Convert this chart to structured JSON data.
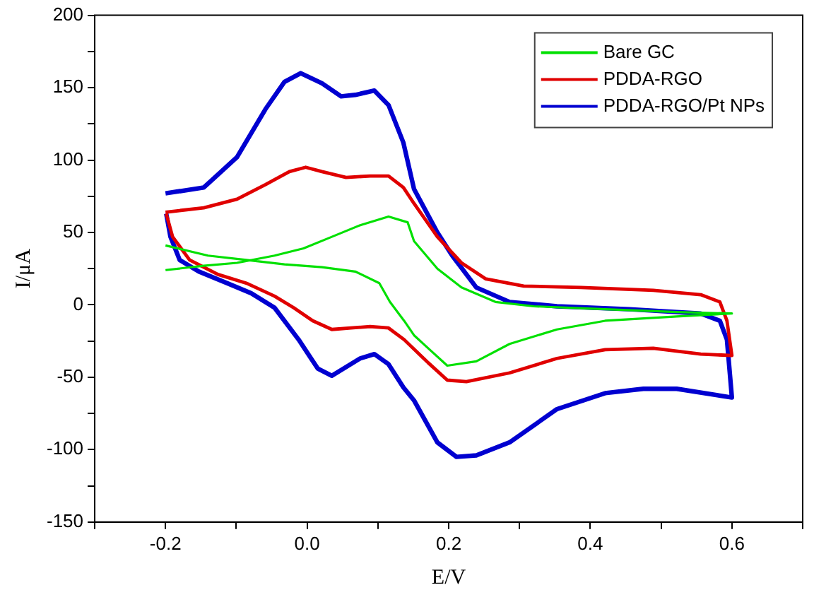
{
  "chart_data": {
    "type": "line",
    "xlabel": "E/V",
    "ylabel": "I/μA",
    "xlim": [
      -0.3,
      0.7
    ],
    "ylim": [
      -150,
      200
    ],
    "xticks": [
      {
        "value": -0.3,
        "label": null
      },
      -0.2,
      {
        "value": -0.1,
        "label": null
      },
      {
        "value": 0,
        "label": "0.0"
      },
      {
        "value": 0.1,
        "label": null
      },
      0.2,
      {
        "value": 0.3,
        "label": null
      },
      0.4,
      {
        "value": 0.5,
        "label": null
      },
      0.6,
      {
        "value": 0.7,
        "label": null
      }
    ],
    "yticks": [
      -150,
      {
        "value": -125,
        "label": null
      },
      -100,
      {
        "value": -75,
        "label": null
      },
      -50,
      {
        "value": -25,
        "label": null
      },
      0,
      {
        "value": 25,
        "label": null
      },
      50,
      {
        "value": 75,
        "label": null
      },
      100,
      {
        "value": 125,
        "label": null
      },
      150,
      {
        "value": 175,
        "label": null
      },
      200
    ],
    "legend": "top right",
    "grid": false,
    "marker": "none",
    "line_style": "solid",
    "series": [
      {
        "name": "Bare GC",
        "color": "#00e000",
        "x": [
          -0.2,
          -0.146,
          -0.099,
          -0.046,
          -0.005,
          0.035,
          0.075,
          0.115,
          0.142,
          0.151,
          0.184,
          0.218,
          0.266,
          0.32,
          0.421,
          0.522,
          0.6,
          0.522,
          0.421,
          0.353,
          0.286,
          0.239,
          0.198,
          0.171,
          0.151,
          0.137,
          0.117,
          0.102,
          0.068,
          0.021,
          -0.032,
          -0.086,
          -0.14,
          -0.2
        ],
        "values": [
          24,
          27,
          29,
          34,
          39,
          47,
          55,
          61,
          57,
          44,
          25,
          12,
          2,
          -1,
          -3,
          -5,
          -6,
          -8,
          -11,
          -17,
          -27,
          -39,
          -42,
          -30,
          -21,
          -11,
          2,
          15,
          23,
          26,
          28,
          31,
          34,
          41
        ]
      },
      {
        "name": "PDDA-RGO",
        "color": "#e00000",
        "x": [
          -0.2,
          -0.146,
          -0.099,
          -0.059,
          -0.025,
          -0.002,
          0.021,
          0.055,
          0.089,
          0.115,
          0.136,
          0.151,
          0.184,
          0.218,
          0.252,
          0.306,
          0.387,
          0.489,
          0.556,
          0.583,
          0.593,
          0.6,
          0.556,
          0.489,
          0.421,
          0.353,
          0.286,
          0.225,
          0.198,
          0.171,
          0.137,
          0.115,
          0.089,
          0.062,
          0.035,
          0.008,
          -0.019,
          -0.046,
          -0.086,
          -0.126,
          -0.166,
          -0.19,
          -0.199
        ],
        "values": [
          64,
          67,
          73,
          83,
          92,
          95,
          92,
          88,
          89,
          89,
          81,
          70,
          47,
          29,
          18,
          13,
          12,
          10,
          7,
          2,
          -11,
          -35,
          -34,
          -30,
          -31,
          -37,
          -47,
          -53,
          -52,
          -40,
          -24,
          -16,
          -15,
          -16,
          -17,
          -11,
          -2,
          6,
          15,
          21,
          31,
          47,
          63
        ]
      },
      {
        "name": "PDDA-RGO/Pt NPs",
        "color": "#0000d0",
        "x": [
          -0.2,
          -0.146,
          -0.099,
          -0.059,
          -0.032,
          -0.009,
          0.021,
          0.048,
          0.068,
          0.095,
          0.115,
          0.136,
          0.151,
          0.184,
          0.205,
          0.239,
          0.286,
          0.353,
          0.455,
          0.522,
          0.556,
          0.583,
          0.593,
          0.6,
          0.522,
          0.475,
          0.421,
          0.353,
          0.286,
          0.239,
          0.211,
          0.184,
          0.151,
          0.136,
          0.115,
          0.095,
          0.075,
          0.035,
          0.015,
          -0.012,
          -0.046,
          -0.079,
          -0.113,
          -0.153,
          -0.18,
          -0.193,
          -0.199
        ],
        "values": [
          77,
          81,
          102,
          135,
          154,
          160,
          153,
          144,
          145,
          148,
          138,
          112,
          80,
          50,
          34,
          12,
          2,
          -1,
          -3,
          -5,
          -6,
          -11,
          -24,
          -64,
          -58,
          -58,
          -61,
          -72,
          -95,
          -104,
          -105,
          -95,
          -66,
          -57,
          -41,
          -34,
          -37,
          -49,
          -44,
          -24,
          -2,
          8,
          15,
          23,
          31,
          47,
          63
        ]
      }
    ]
  }
}
